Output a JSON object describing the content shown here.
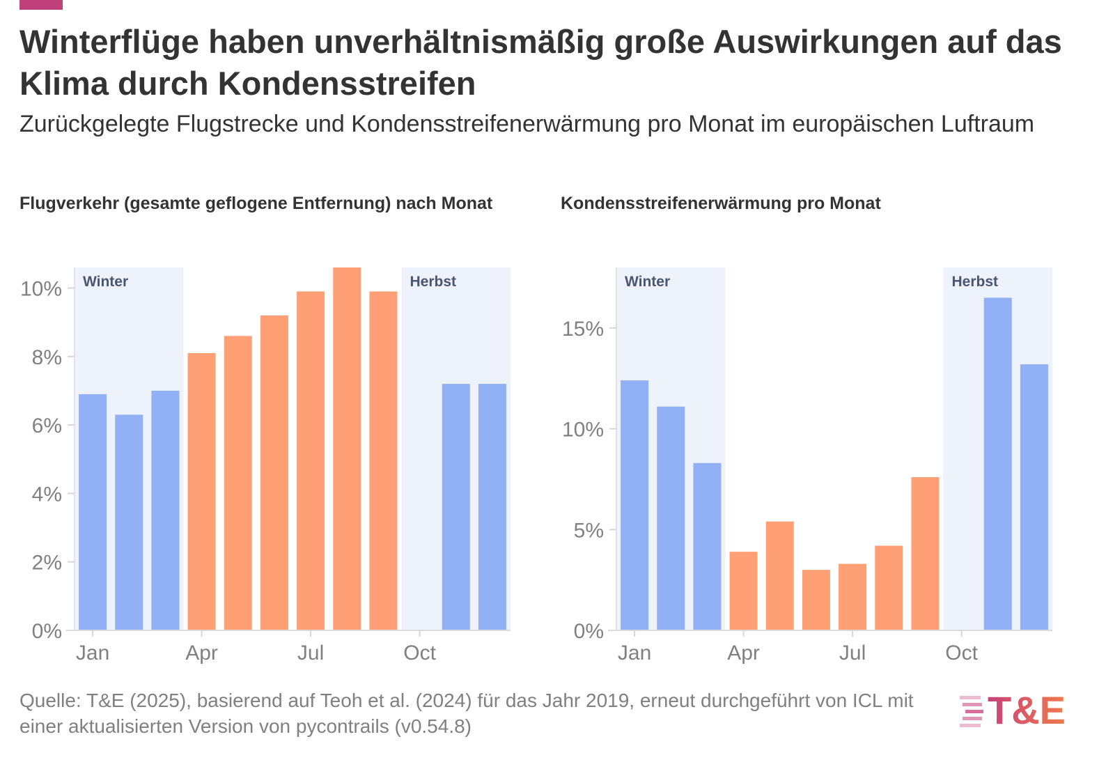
{
  "header": {
    "title": "Winterflüge haben unverhältnismäßig große Auswirkungen auf das Klima durch Kondensstreifen",
    "subtitle": "Zurückgelegte Flugstrecke und Kondensstreifenerwärmung pro Monat im europäischen Luftraum"
  },
  "footer": {
    "source": "Quelle: T&E (2025), basierend auf Teoh et al. (2024) für das Jahr 2019, erneut durchgeführt von ICL mit einer aktualisierten Version von pycontrails (v0.54.8)",
    "logo_text": "T&E"
  },
  "colors": {
    "accent": "#C0407A",
    "winter_bar": "#92B0F5",
    "summer_bar": "#FF9F76",
    "band": "#EEF2FB",
    "logo_pink": "#C8407A",
    "logo_orange": "#F07A4A"
  },
  "chart_data": [
    {
      "type": "bar",
      "title": "Flugverkehr (gesamte geflogene Entfernung) nach Monat",
      "months": [
        1,
        2,
        3,
        4,
        5,
        6,
        7,
        8,
        9,
        10,
        11,
        12
      ],
      "values": [
        6.9,
        6.3,
        7.0,
        8.1,
        8.6,
        9.2,
        9.9,
        10.6,
        9.9,
        null,
        7.2,
        7.2
      ],
      "seasons": [
        "winter",
        "winter",
        "winter",
        "summer",
        "summer",
        "summer",
        "summer",
        "summer",
        "summer",
        "winter",
        "winter",
        "winter"
      ],
      "ylim": [
        0,
        10.6
      ],
      "yticks": [
        0,
        2,
        4,
        6,
        8,
        10
      ],
      "ytick_labels": [
        "0%",
        "2%",
        "4%",
        "6%",
        "8%",
        "10%"
      ],
      "xticks": [
        1,
        4,
        7,
        10
      ],
      "xtick_labels": [
        "Jan",
        "Apr",
        "Jul",
        "Oct"
      ],
      "bands": [
        {
          "label": "Winter",
          "from_month": 1,
          "to_month": 3
        },
        {
          "label": "Herbst",
          "from_month": 10,
          "to_month": 12
        }
      ]
    },
    {
      "type": "bar",
      "title": "Kondensstreifenerwärmung pro Monat",
      "months": [
        1,
        2,
        3,
        4,
        5,
        6,
        7,
        8,
        9,
        10,
        11,
        12
      ],
      "values": [
        12.4,
        11.1,
        8.3,
        3.9,
        5.4,
        3.0,
        3.3,
        4.2,
        7.6,
        null,
        16.5,
        13.2
      ],
      "seasons": [
        "winter",
        "winter",
        "winter",
        "summer",
        "summer",
        "summer",
        "summer",
        "summer",
        "summer",
        "winter",
        "winter",
        "winter"
      ],
      "ylim": [
        0,
        18
      ],
      "yticks": [
        0,
        5,
        10,
        15
      ],
      "ytick_labels": [
        "0%",
        "5%",
        "10%",
        "15%"
      ],
      "xticks": [
        1,
        4,
        7,
        10
      ],
      "xtick_labels": [
        "Jan",
        "Apr",
        "Jul",
        "Oct"
      ],
      "bands": [
        {
          "label": "Winter",
          "from_month": 1,
          "to_month": 3
        },
        {
          "label": "Herbst",
          "from_month": 10,
          "to_month": 12
        }
      ]
    }
  ]
}
